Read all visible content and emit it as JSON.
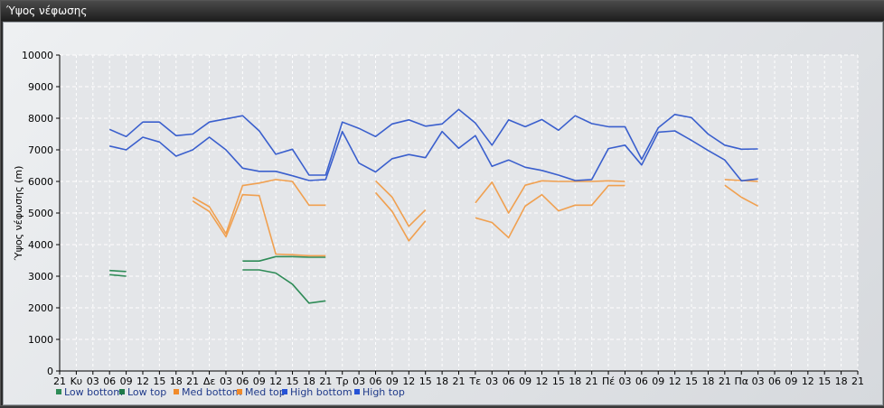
{
  "window": {
    "title": "Ύψος νέφωσης"
  },
  "chart_data": {
    "type": "line",
    "title": "",
    "xlabel": "",
    "ylabel": "Ύψος νέφωσης (m)",
    "ylim": [
      0,
      10000
    ],
    "yticks": [
      0,
      1000,
      2000,
      3000,
      4000,
      5000,
      6000,
      7000,
      8000,
      9000,
      10000
    ],
    "grid": true,
    "legend_position": "bottom-left",
    "categories": [
      "21",
      "Κυ",
      "03",
      "06",
      "09",
      "12",
      "15",
      "18",
      "21",
      "Δε",
      "03",
      "06",
      "09",
      "12",
      "15",
      "18",
      "21",
      "Τρ",
      "03",
      "06",
      "09",
      "12",
      "15",
      "18",
      "21",
      "Τε",
      "03",
      "06",
      "09",
      "12",
      "15",
      "18",
      "21",
      "Πέ",
      "03",
      "06",
      "09",
      "12",
      "15",
      "18",
      "21",
      "Πα",
      "03",
      "06",
      "09",
      "12",
      "15",
      "18",
      "21"
    ],
    "series": [
      {
        "name": "Low bottom",
        "color": "#2e8b57",
        "values": [
          null,
          null,
          null,
          3050,
          3000,
          null,
          null,
          null,
          null,
          null,
          null,
          3200,
          3200,
          3100,
          2750,
          2150,
          2220,
          null,
          null,
          null,
          null,
          null,
          null,
          null,
          null,
          null,
          null,
          null,
          null,
          null,
          null,
          null,
          null,
          null,
          null,
          null,
          null,
          null,
          null,
          null,
          null,
          null,
          null,
          null,
          null,
          null,
          null,
          null,
          null
        ]
      },
      {
        "name": "Low top",
        "color": "#2e8b57",
        "values": [
          null,
          null,
          null,
          3180,
          3150,
          null,
          null,
          null,
          null,
          null,
          null,
          3480,
          3480,
          3620,
          3620,
          3600,
          3600,
          null,
          null,
          null,
          null,
          null,
          null,
          null,
          null,
          null,
          null,
          null,
          null,
          null,
          null,
          null,
          null,
          null,
          null,
          null,
          null,
          null,
          null,
          null,
          null,
          null,
          null,
          null,
          null,
          null,
          null,
          null,
          null
        ]
      },
      {
        "name": "Med bottom",
        "color": "#f0a050",
        "values": [
          null,
          null,
          null,
          null,
          null,
          null,
          null,
          null,
          5380,
          5050,
          4250,
          5580,
          5550,
          3700,
          3680,
          3650,
          3650,
          null,
          null,
          5650,
          5050,
          4120,
          4750,
          null,
          null,
          4850,
          4700,
          4220,
          5220,
          5580,
          5070,
          5250,
          5250,
          5870,
          5870,
          null,
          null,
          null,
          null,
          null,
          5880,
          5500,
          5220,
          null,
          null,
          null,
          null,
          null,
          null
        ]
      },
      {
        "name": "Med top",
        "color": "#f0a050",
        "values": [
          null,
          null,
          null,
          null,
          null,
          null,
          null,
          null,
          5500,
          5200,
          4350,
          5870,
          5950,
          6060,
          6000,
          5250,
          5250,
          null,
          null,
          6020,
          5500,
          4580,
          5100,
          null,
          null,
          5320,
          5980,
          5000,
          5880,
          6020,
          6000,
          6000,
          6000,
          6020,
          6000,
          null,
          null,
          null,
          null,
          null,
          6060,
          6030,
          6000,
          null,
          null,
          null,
          null,
          null,
          null
        ]
      },
      {
        "name": "High bottom",
        "color": "#3a5fcd",
        "values": [
          null,
          null,
          null,
          7120,
          7000,
          7400,
          7250,
          6800,
          7000,
          7400,
          7000,
          6420,
          6320,
          6320,
          6180,
          6030,
          6060,
          7580,
          6580,
          6300,
          6720,
          6850,
          6750,
          7580,
          7050,
          7450,
          6480,
          6680,
          6450,
          6350,
          6200,
          6030,
          6060,
          7040,
          7150,
          6520,
          7560,
          7600,
          7300,
          6980,
          6680,
          6020,
          6080,
          null,
          null,
          null,
          null,
          null,
          null
        ]
      },
      {
        "name": "High top",
        "color": "#3a5fcd",
        "values": [
          null,
          null,
          null,
          7650,
          7420,
          7880,
          7880,
          7450,
          7500,
          7880,
          7980,
          8080,
          7600,
          6860,
          7020,
          6200,
          6200,
          7880,
          7680,
          7420,
          7820,
          7950,
          7750,
          7820,
          8280,
          7850,
          7150,
          7950,
          7730,
          7960,
          7620,
          8080,
          7830,
          7730,
          7730,
          6700,
          7700,
          8120,
          8020,
          7500,
          7150,
          7020,
          7030,
          null,
          null,
          null,
          null,
          null,
          null
        ]
      }
    ]
  },
  "legend_markers": [
    "#2e8b57",
    "#1f7a4a",
    "#f08a2a",
    "#f08a2a",
    "#2552d6",
    "#2552d6"
  ]
}
